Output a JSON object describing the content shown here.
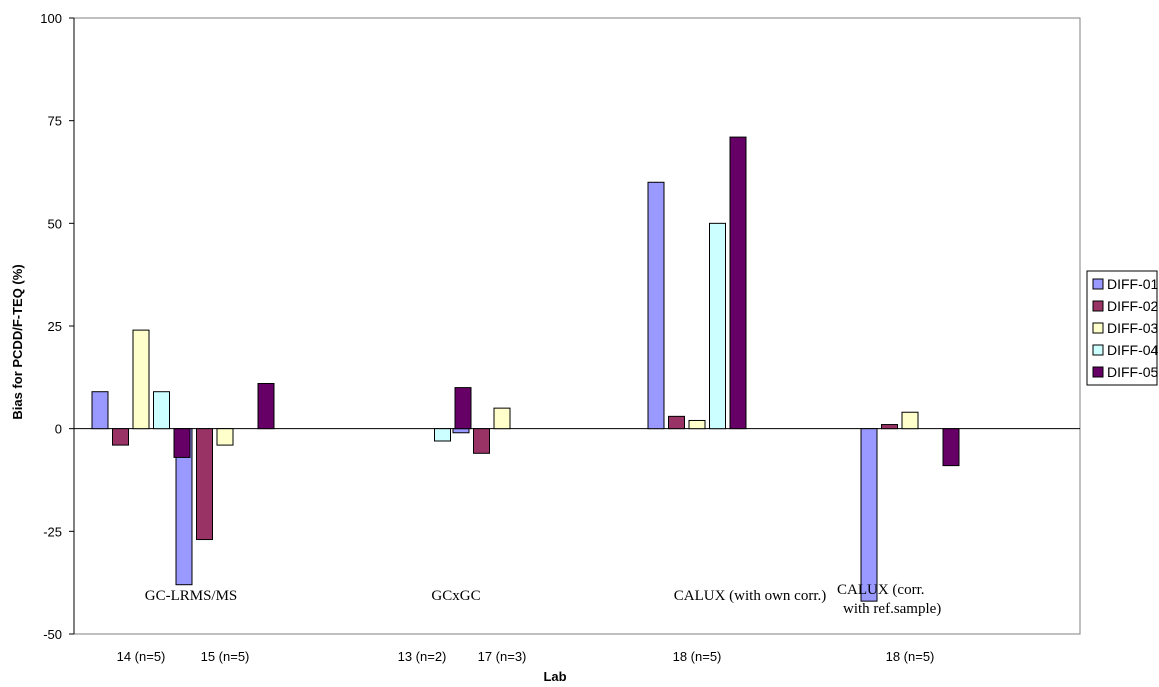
{
  "chart_data": {
    "type": "bar",
    "xlabel": "Lab",
    "ylabel": "Bias for PCDD/F-TEQ (%)",
    "ylim": [
      -50,
      100
    ],
    "yticks": [
      100,
      75,
      50,
      25,
      0,
      -25,
      -50
    ],
    "grid": false,
    "legend_position": "right",
    "categories": [
      "14 (n=5)",
      "15 (n=5)",
      "13 (n=2)",
      "17 (n=3)",
      "18 (n=5)",
      "18 (n=5)"
    ],
    "groups": [
      {
        "label": "GC-LRMS/MS",
        "categories": [
          0,
          1
        ]
      },
      {
        "label": "GCxGC",
        "categories": [
          2,
          3
        ]
      },
      {
        "label": "CALUX (with own corr.)",
        "categories": [
          4
        ]
      },
      {
        "label_lines": [
          "CALUX (corr.",
          "with ref.sample)"
        ],
        "categories": [
          5
        ]
      }
    ],
    "series": [
      {
        "name": "DIFF-01",
        "color": "#9999ff",
        "values": [
          9,
          -38,
          null,
          -1,
          60,
          -42
        ]
      },
      {
        "name": "DIFF-02",
        "color": "#993366",
        "values": [
          -4,
          -27,
          null,
          -6,
          3,
          1
        ]
      },
      {
        "name": "DIFF-03",
        "color": "#ffffcc",
        "values": [
          24,
          -4,
          null,
          5,
          2,
          4
        ]
      },
      {
        "name": "DIFF-04",
        "color": "#ccffff",
        "values": [
          9,
          null,
          -3,
          null,
          50,
          null
        ]
      },
      {
        "name": "DIFF-05",
        "color": "#660066",
        "values": [
          -7,
          11,
          10,
          null,
          71,
          -9
        ]
      }
    ]
  }
}
